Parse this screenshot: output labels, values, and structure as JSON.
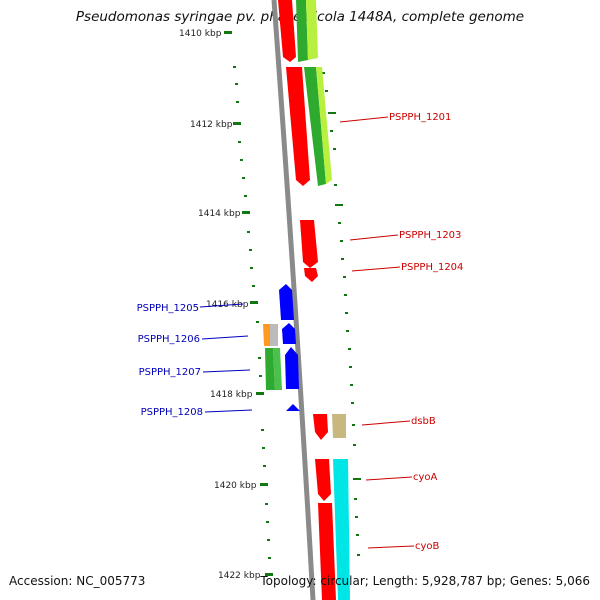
{
  "title": "Pseudomonas syringae pv. phaseolicola 1448A, complete genome",
  "footer": {
    "accession": "Accession: NC_005773",
    "topology": "Topology: circular; Length: 5,928,787 bp; Genes: 5,066"
  },
  "ticks": [
    "1410 kbp",
    "1412 kbp",
    "1414 kbp",
    "1416 kbp",
    "1418 kbp",
    "1420 kbp",
    "1422 kbp"
  ],
  "labels": {
    "PSPPH_1201": "PSPPH_1201",
    "PSPPH_1203": "PSPPH_1203",
    "PSPPH_1204": "PSPPH_1204",
    "PSPPH_1205": "PSPPH_1205",
    "PSPPH_1206": "PSPPH_1206",
    "PSPPH_1207": "PSPPH_1207",
    "PSPPH_1208": "PSPPH_1208",
    "dsbB": "dsbB",
    "cyoA": "cyoA",
    "cyoB": "cyoB"
  },
  "colors": {
    "forward_label": "#cc0000",
    "reverse_label": "#0000bb",
    "cds_forward": "#ff0000",
    "cds_reverse": "#0000ff",
    "cog_green": "#2eaa2e",
    "cog_lime": "#b8f040",
    "cog_tan": "#c8b880",
    "cog_cyan": "#00e6e6",
    "cog_orange": "#ff9922",
    "cog_grey": "#bbbbbb",
    "backbone": "#8a8a8a",
    "tick": "#117711"
  }
}
